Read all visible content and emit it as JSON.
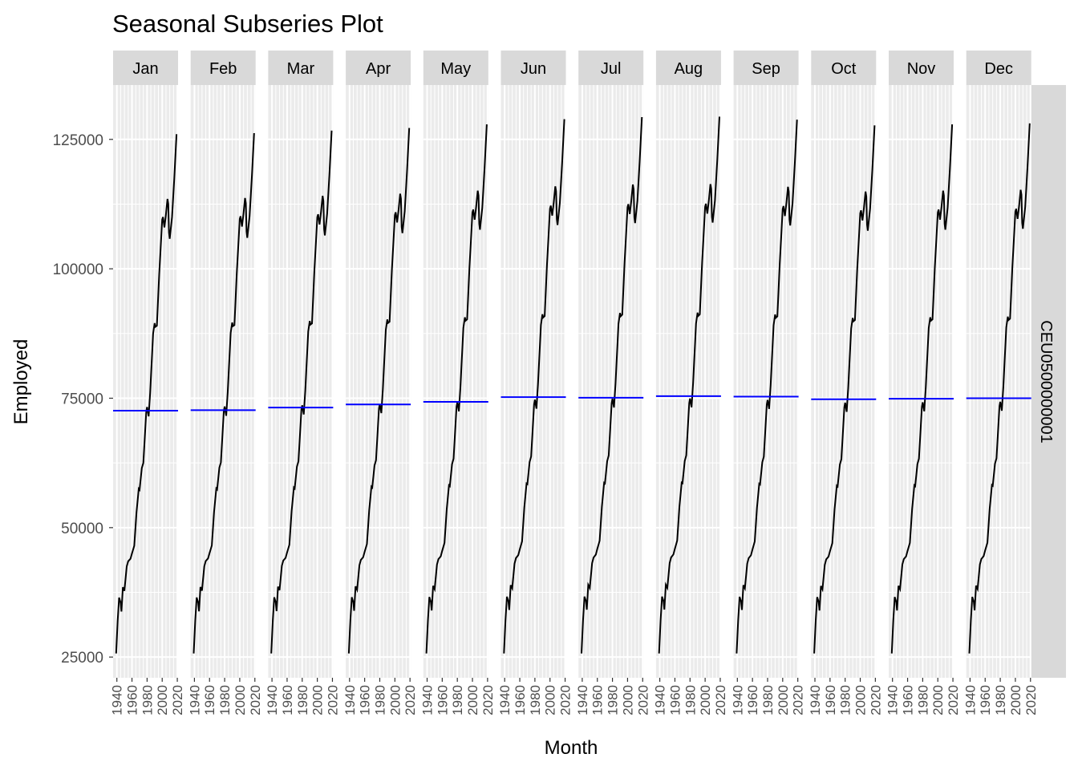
{
  "chart_data": {
    "type": "line",
    "title": "Seasonal Subseries Plot",
    "xlabel": "Month",
    "ylabel": "Employed",
    "strip_right": "CEU0500000001",
    "ylim": [
      21000,
      135500
    ],
    "xlim": [
      1935,
      2021
    ],
    "y_ticks": [
      25000,
      50000,
      75000,
      100000,
      125000
    ],
    "y_tick_labels": [
      "25000",
      "50000",
      "75000",
      "100000",
      "125000"
    ],
    "x_ticks": [
      1940,
      1960,
      1980,
      2000,
      2020
    ],
    "x_tick_labels": [
      "1940",
      "1960",
      "1980",
      "2000",
      "2020"
    ],
    "grid": true,
    "colors": {
      "series": "#000000",
      "mean_line": "#0000ff",
      "panel_bg": "#ebebeb",
      "strip_bg": "#d9d9d9",
      "grid": "#ffffff"
    },
    "trend_years": [
      1939,
      1941,
      1943,
      1945,
      1946,
      1948,
      1950,
      1953,
      1955,
      1958,
      1960,
      1963,
      1966,
      1969,
      1970,
      1973,
      1975,
      1979,
      1980,
      1982,
      1984,
      1988,
      1990,
      1991,
      1993,
      1996,
      1998,
      2000,
      2001,
      2003,
      2005,
      2007,
      2008,
      2009,
      2010,
      2013,
      2016,
      2019
    ],
    "trend_values": [
      25700,
      32000,
      36500,
      35500,
      33800,
      38500,
      37800,
      42500,
      43500,
      44000,
      45000,
      46500,
      53000,
      57500,
      57300,
      61500,
      62500,
      72500,
      73300,
      71500,
      76000,
      87500,
      89500,
      88800,
      89000,
      99000,
      104000,
      109500,
      110000,
      108000,
      110500,
      113500,
      112500,
      107000,
      105800,
      110000,
      117500,
      126000
    ],
    "series": [
      {
        "month": "Jan",
        "values_offset": 0,
        "mean": 72600
      },
      {
        "month": "Feb",
        "values_offset": 200,
        "mean": 72700
      },
      {
        "month": "Mar",
        "values_offset": 700,
        "mean": 73200
      },
      {
        "month": "Apr",
        "values_offset": 1200,
        "mean": 73800
      },
      {
        "month": "May",
        "values_offset": 1900,
        "mean": 74300
      },
      {
        "month": "Jun",
        "values_offset": 2900,
        "mean": 75200
      },
      {
        "month": "Jul",
        "values_offset": 3300,
        "mean": 75100
      },
      {
        "month": "Aug",
        "values_offset": 3400,
        "mean": 75400
      },
      {
        "month": "Sep",
        "values_offset": 2800,
        "mean": 75300
      },
      {
        "month": "Oct",
        "values_offset": 1700,
        "mean": 74800
      },
      {
        "month": "Nov",
        "values_offset": 1900,
        "mean": 74900
      },
      {
        "month": "Dec",
        "values_offset": 2100,
        "mean": 75000
      }
    ]
  }
}
